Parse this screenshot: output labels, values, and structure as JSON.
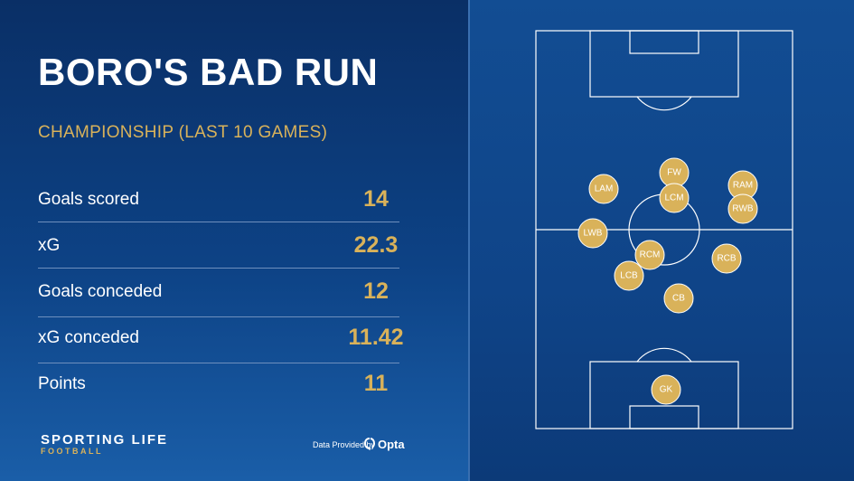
{
  "header": {
    "title": "BORO'S BAD RUN",
    "subtitle": "CHAMPIONSHIP (LAST 10 GAMES)"
  },
  "stats": [
    {
      "label": "Goals scored",
      "value": "14"
    },
    {
      "label": "xG",
      "value": "22.3"
    },
    {
      "label": "Goals conceded",
      "value": "12"
    },
    {
      "label": "xG conceded",
      "value": "11.42"
    },
    {
      "label": "Points",
      "value": "11"
    }
  ],
  "footer": {
    "brand": "SPORTING LIFE",
    "brand_sub": "FOOTBALL",
    "provider_text": "Data Provided by",
    "provider_name": "Opta"
  },
  "formation": {
    "players": [
      "FW",
      "LAM",
      "RAM",
      "LCM",
      "RWB",
      "LWB",
      "RCM",
      "RCB",
      "LCB",
      "CB",
      "GK"
    ]
  },
  "colors": {
    "accent_gold": "#d9b25a",
    "background_blue": "#0d4285"
  }
}
